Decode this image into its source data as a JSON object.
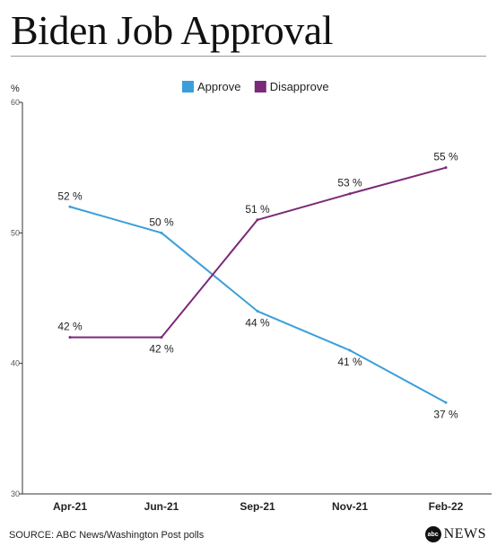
{
  "title": "Biden Job Approval",
  "source": "SOURCE: ABC News/Washington Post polls",
  "logo": {
    "mark": "abc",
    "text": "NEWS"
  },
  "chart_data": {
    "type": "line",
    "ylabel": "%",
    "ylim": [
      30,
      60
    ],
    "yticks": [
      30,
      40,
      50,
      60
    ],
    "categories": [
      "Apr-21",
      "Jun-21",
      "Sep-21",
      "Nov-21",
      "Feb-22"
    ],
    "legend_position": "top",
    "grid": false,
    "series": [
      {
        "name": "Approve",
        "color": "#3a9fd9",
        "values": [
          52,
          50,
          44,
          41,
          37
        ],
        "labels": [
          "52 %",
          "50 %",
          "44 %",
          "41 %",
          "37 %"
        ],
        "label_side": [
          "above",
          "above",
          "below",
          "below",
          "below"
        ]
      },
      {
        "name": "Disapprove",
        "color": "#7a2a78",
        "values": [
          42,
          42,
          51,
          53,
          55
        ],
        "labels": [
          "42 %",
          "42 %",
          "51 %",
          "53 %",
          "55 %"
        ],
        "label_side": [
          "above",
          "below",
          "above",
          "above",
          "above"
        ]
      }
    ]
  }
}
